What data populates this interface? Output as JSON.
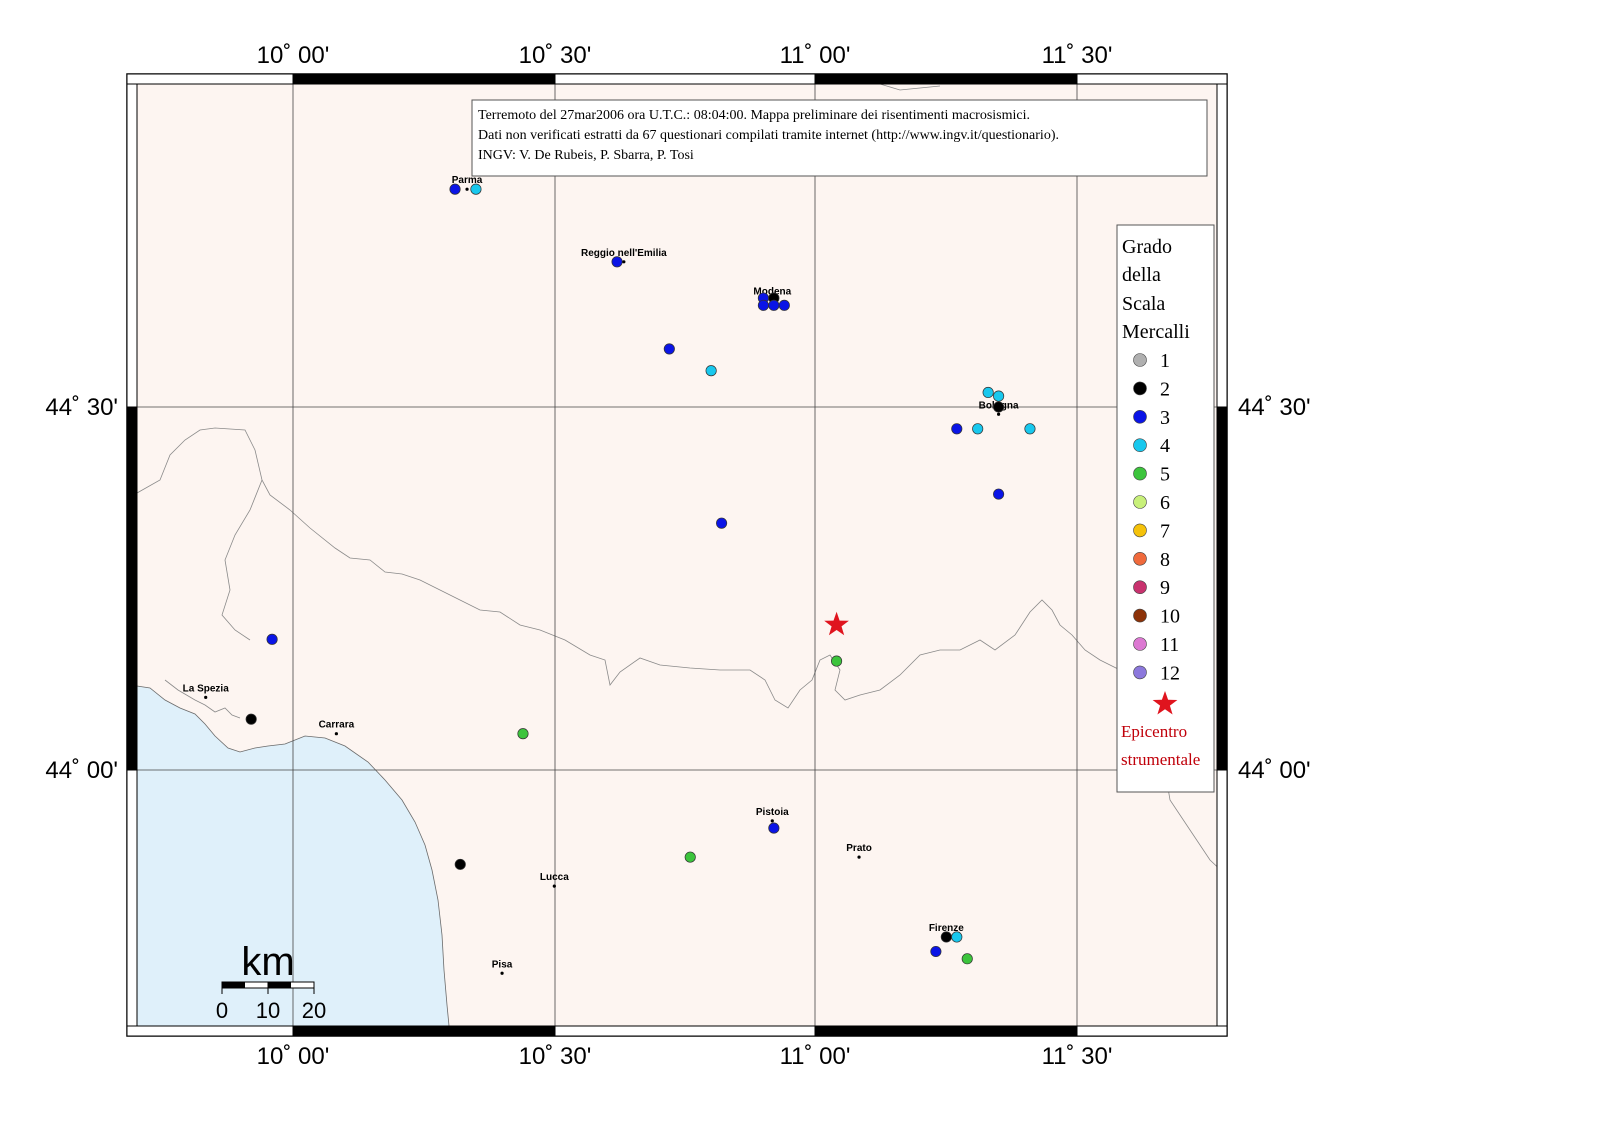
{
  "info_box": {
    "line1": "Terremoto del 27mar2006 ora U.T.C.: 08:04:00.  Mappa preliminare dei risentimenti macrosismici.",
    "line2": "Dati non verificati estratti da 67 questionari compilati tramite internet (http://www.ingv.it/questionario).",
    "line3": "INGV: V.  De Rubeis, P.  Sbarra, P.  Tosi"
  },
  "axes": {
    "lon_ticks": [
      "10˚ 00'",
      "10˚ 30'",
      "11˚ 00'",
      "11˚ 30'"
    ],
    "lat_ticks": [
      "44˚ 30'",
      "44˚ 00'"
    ]
  },
  "legend": {
    "title": [
      "Grado",
      "della",
      "Scala",
      "Mercalli"
    ],
    "items": [
      {
        "label": "1",
        "color": "#b0b0b0"
      },
      {
        "label": "2",
        "color": "#000000"
      },
      {
        "label": "3",
        "color": "#0a14e6"
      },
      {
        "label": "4",
        "color": "#18c8ee"
      },
      {
        "label": "5",
        "color": "#3cc43c"
      },
      {
        "label": "6",
        "color": "#c8f07a"
      },
      {
        "label": "7",
        "color": "#f5c20a"
      },
      {
        "label": "8",
        "color": "#f06a3c"
      },
      {
        "label": "9",
        "color": "#c8326e"
      },
      {
        "label": "10",
        "color": "#8c3208"
      },
      {
        "label": "11",
        "color": "#dc78d2"
      },
      {
        "label": "12",
        "color": "#8c78dc"
      }
    ],
    "epicenter_label": [
      "Epicentro",
      "strumentale"
    ],
    "epicenter_color": "#e0141e"
  },
  "scale_bar": {
    "unit": "km",
    "ticks": [
      "0",
      "10",
      "20"
    ]
  },
  "cities": [
    {
      "name": "Parma",
      "lon": 10.333,
      "lat": 44.8
    },
    {
      "name": "Reggio nell'Emilia",
      "lon": 10.633,
      "lat": 44.7
    },
    {
      "name": "Modena",
      "lon": 10.917,
      "lat": 44.647
    },
    {
      "name": "Bologna",
      "lon": 11.35,
      "lat": 44.49
    },
    {
      "name": "La Spezia",
      "lon": 9.833,
      "lat": 44.1
    },
    {
      "name": "Carrara",
      "lon": 10.083,
      "lat": 44.05
    },
    {
      "name": "Pistoia",
      "lon": 10.917,
      "lat": 43.93
    },
    {
      "name": "Prato",
      "lon": 11.083,
      "lat": 43.88
    },
    {
      "name": "Lucca",
      "lon": 10.5,
      "lat": 43.84
    },
    {
      "name": "Firenze",
      "lon": 11.25,
      "lat": 43.77
    },
    {
      "name": "Pisa",
      "lon": 10.4,
      "lat": 43.72
    }
  ],
  "observations": [
    {
      "lon": 10.31,
      "lat": 44.8,
      "mcs": 3
    },
    {
      "lon": 10.35,
      "lat": 44.8,
      "mcs": 4
    },
    {
      "lon": 10.62,
      "lat": 44.7,
      "mcs": 3
    },
    {
      "lon": 10.9,
      "lat": 44.65,
      "mcs": 3
    },
    {
      "lon": 10.92,
      "lat": 44.65,
      "mcs": 2
    },
    {
      "lon": 10.9,
      "lat": 44.64,
      "mcs": 3
    },
    {
      "lon": 10.92,
      "lat": 44.64,
      "mcs": 3
    },
    {
      "lon": 10.94,
      "lat": 44.64,
      "mcs": 3
    },
    {
      "lon": 10.72,
      "lat": 44.58,
      "mcs": 3
    },
    {
      "lon": 10.8,
      "lat": 44.55,
      "mcs": 4
    },
    {
      "lon": 11.33,
      "lat": 44.52,
      "mcs": 4
    },
    {
      "lon": 11.35,
      "lat": 44.515,
      "mcs": 4
    },
    {
      "lon": 11.35,
      "lat": 44.5,
      "mcs": 2
    },
    {
      "lon": 11.27,
      "lat": 44.47,
      "mcs": 3
    },
    {
      "lon": 11.31,
      "lat": 44.47,
      "mcs": 4
    },
    {
      "lon": 11.41,
      "lat": 44.47,
      "mcs": 4
    },
    {
      "lon": 11.35,
      "lat": 44.38,
      "mcs": 3
    },
    {
      "lon": 10.82,
      "lat": 44.34,
      "mcs": 3
    },
    {
      "lon": 9.96,
      "lat": 44.18,
      "mcs": 3
    },
    {
      "lon": 11.04,
      "lat": 44.15,
      "mcs": 5
    },
    {
      "lon": 9.92,
      "lat": 44.07,
      "mcs": 2
    },
    {
      "lon": 10.44,
      "lat": 44.05,
      "mcs": 5
    },
    {
      "lon": 10.92,
      "lat": 43.92,
      "mcs": 3
    },
    {
      "lon": 10.76,
      "lat": 43.88,
      "mcs": 5
    },
    {
      "lon": 10.32,
      "lat": 43.87,
      "mcs": 2
    },
    {
      "lon": 11.25,
      "lat": 43.77,
      "mcs": 2
    },
    {
      "lon": 11.27,
      "lat": 43.77,
      "mcs": 4
    },
    {
      "lon": 11.23,
      "lat": 43.75,
      "mcs": 3
    },
    {
      "lon": 11.29,
      "lat": 43.74,
      "mcs": 5
    }
  ],
  "epicenter": {
    "lon": 11.04,
    "lat": 44.2
  }
}
